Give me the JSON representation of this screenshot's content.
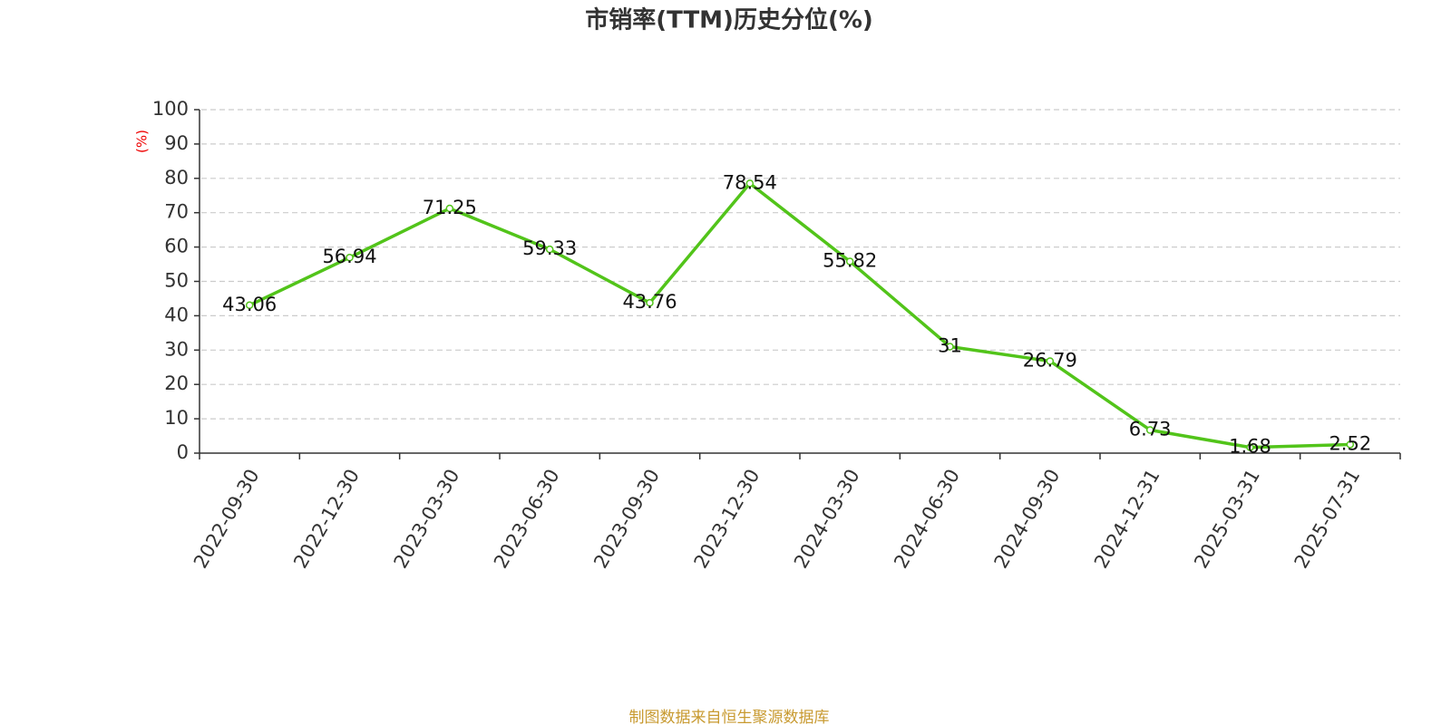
{
  "chart_data": {
    "type": "line",
    "title": "市销率(TTM)历史分位(%)",
    "y_label": "(%)",
    "categories": [
      "2022-09-30",
      "2022-12-30",
      "2023-03-30",
      "2023-06-30",
      "2023-09-30",
      "2023-12-30",
      "2024-03-30",
      "2024-06-30",
      "2024-09-30",
      "2024-12-31",
      "2025-03-31",
      "2025-07-31"
    ],
    "values": [
      43.06,
      56.94,
      71.25,
      59.33,
      43.76,
      78.54,
      55.82,
      31,
      26.79,
      6.73,
      1.68,
      2.52
    ],
    "color": "#52c41a",
    "ylim": [
      0,
      100
    ],
    "yticks": [
      0,
      10,
      20,
      30,
      40,
      50,
      60,
      70,
      80,
      90,
      100
    ],
    "grid": true,
    "source": "制图数据来自恒生聚源数据库"
  }
}
